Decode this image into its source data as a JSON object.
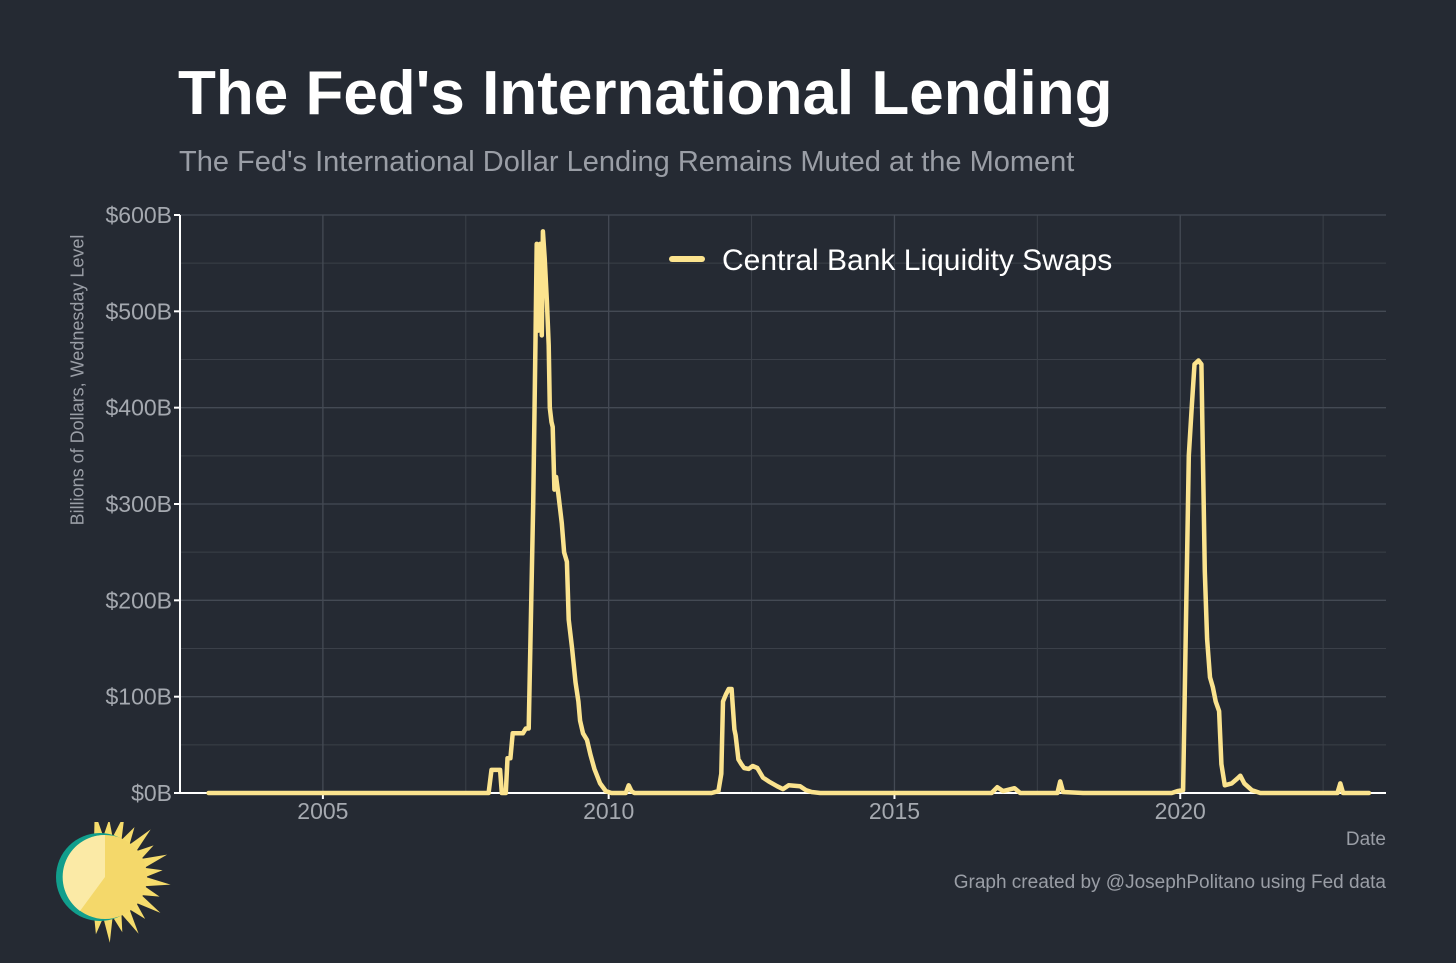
{
  "header": {
    "title": "The Fed's International Lending",
    "subtitle": "The Fed's International Dollar Lending Remains Muted at the Moment"
  },
  "footer": {
    "caption": "Graph created by @JosephPolitano using Fed data"
  },
  "colors": {
    "background": "#252a33",
    "line": "#fbe38e",
    "grid": "#3b4049",
    "axis": "#ffffff"
  },
  "logo": {
    "icon": "sun-icon"
  },
  "chart_data": {
    "type": "line",
    "title": "The Fed's International Lending",
    "subtitle": "The Fed's International Dollar Lending Remains Muted at the Moment",
    "xlabel": "Date",
    "ylabel": "Billions of Dollars, Wednesday Level",
    "xlim": [
      2002.5,
      2023.6
    ],
    "ylim": [
      0,
      600
    ],
    "x_ticks": [
      2005,
      2010,
      2015,
      2020
    ],
    "x_tick_labels": [
      "2005",
      "2010",
      "2015",
      "2020"
    ],
    "y_ticks": [
      0,
      100,
      200,
      300,
      400,
      500,
      600
    ],
    "y_tick_labels": [
      "$0B",
      "$100B",
      "$200B",
      "$300B",
      "$400B",
      "$500B",
      "$600B"
    ],
    "grid": true,
    "legend_position": "top-right",
    "series": [
      {
        "name": "Central Bank Liquidity Swaps",
        "color": "#fbe38e",
        "points": [
          [
            2003.0,
            0
          ],
          [
            2007.9,
            0
          ],
          [
            2007.95,
            24
          ],
          [
            2008.1,
            24
          ],
          [
            2008.13,
            0
          ],
          [
            2008.2,
            0
          ],
          [
            2008.23,
            36
          ],
          [
            2008.28,
            36
          ],
          [
            2008.32,
            62
          ],
          [
            2008.5,
            62
          ],
          [
            2008.55,
            67
          ],
          [
            2008.6,
            67
          ],
          [
            2008.68,
            300
          ],
          [
            2008.72,
            470
          ],
          [
            2008.74,
            570
          ],
          [
            2008.77,
            480
          ],
          [
            2008.8,
            570
          ],
          [
            2008.83,
            475
          ],
          [
            2008.85,
            583
          ],
          [
            2008.88,
            555
          ],
          [
            2008.92,
            510
          ],
          [
            2008.95,
            465
          ],
          [
            2008.97,
            400
          ],
          [
            2009.0,
            385
          ],
          [
            2009.02,
            380
          ],
          [
            2009.05,
            315
          ],
          [
            2009.08,
            328
          ],
          [
            2009.12,
            310
          ],
          [
            2009.18,
            280
          ],
          [
            2009.22,
            250
          ],
          [
            2009.27,
            240
          ],
          [
            2009.3,
            180
          ],
          [
            2009.36,
            150
          ],
          [
            2009.42,
            115
          ],
          [
            2009.47,
            95
          ],
          [
            2009.5,
            75
          ],
          [
            2009.55,
            62
          ],
          [
            2009.62,
            55
          ],
          [
            2009.68,
            40
          ],
          [
            2009.75,
            25
          ],
          [
            2009.85,
            10
          ],
          [
            2009.95,
            2
          ],
          [
            2010.05,
            0
          ],
          [
            2010.3,
            0
          ],
          [
            2010.35,
            8
          ],
          [
            2010.4,
            2
          ],
          [
            2010.45,
            0
          ],
          [
            2011.8,
            0
          ],
          [
            2011.92,
            2
          ],
          [
            2011.97,
            20
          ],
          [
            2012.0,
            95
          ],
          [
            2012.05,
            102
          ],
          [
            2012.1,
            108
          ],
          [
            2012.15,
            108
          ],
          [
            2012.2,
            66
          ],
          [
            2012.22,
            60
          ],
          [
            2012.27,
            35
          ],
          [
            2012.32,
            30
          ],
          [
            2012.37,
            26
          ],
          [
            2012.45,
            25
          ],
          [
            2012.52,
            28
          ],
          [
            2012.6,
            26
          ],
          [
            2012.7,
            16
          ],
          [
            2012.8,
            12
          ],
          [
            2012.95,
            7
          ],
          [
            2013.05,
            4
          ],
          [
            2013.15,
            8
          ],
          [
            2013.35,
            7
          ],
          [
            2013.45,
            3
          ],
          [
            2013.55,
            1
          ],
          [
            2013.7,
            0
          ],
          [
            2016.7,
            0
          ],
          [
            2016.8,
            6
          ],
          [
            2016.9,
            2
          ],
          [
            2017.1,
            5
          ],
          [
            2017.2,
            0
          ],
          [
            2017.85,
            0
          ],
          [
            2017.9,
            12
          ],
          [
            2017.95,
            1
          ],
          [
            2018.3,
            0
          ],
          [
            2019.85,
            0
          ],
          [
            2019.95,
            2
          ],
          [
            2020.05,
            3
          ],
          [
            2020.15,
            350
          ],
          [
            2020.2,
            400
          ],
          [
            2020.25,
            445
          ],
          [
            2020.32,
            449
          ],
          [
            2020.37,
            445
          ],
          [
            2020.43,
            230
          ],
          [
            2020.47,
            160
          ],
          [
            2020.52,
            120
          ],
          [
            2020.57,
            110
          ],
          [
            2020.62,
            95
          ],
          [
            2020.68,
            85
          ],
          [
            2020.72,
            30
          ],
          [
            2020.78,
            8
          ],
          [
            2020.9,
            10
          ],
          [
            2021.0,
            15
          ],
          [
            2021.05,
            18
          ],
          [
            2021.12,
            10
          ],
          [
            2021.25,
            3
          ],
          [
            2021.4,
            0
          ],
          [
            2022.75,
            0
          ],
          [
            2022.8,
            10
          ],
          [
            2022.85,
            0
          ],
          [
            2023.3,
            0
          ]
        ]
      }
    ]
  }
}
